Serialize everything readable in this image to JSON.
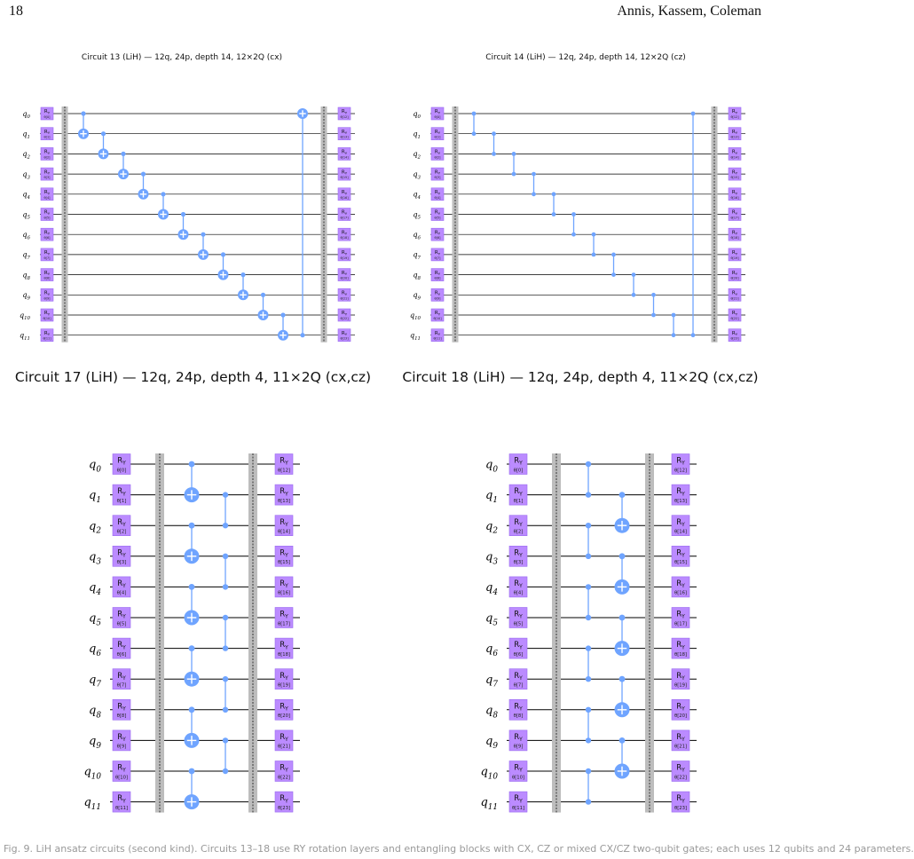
{
  "page": {
    "number": "18",
    "authors": "Annis, Kassem, Coleman"
  },
  "colors": {
    "gate": "#bb8bff",
    "gate_border": "#9a6cf0",
    "entangle": "#6fa4ff",
    "barrier": "#bdbdbd",
    "wire": "#000000"
  },
  "gate_label": "R",
  "gate_sub": "Y",
  "circuits": [
    {
      "title": "Circuit 13 (LiH) — 12q, 24p, depth 14, 12×2Q (cx)",
      "type": "cx",
      "pattern": "chain-ring",
      "two_qubit_gates": [
        [
          0,
          1
        ],
        [
          1,
          2
        ],
        [
          2,
          3
        ],
        [
          3,
          4
        ],
        [
          4,
          5
        ],
        [
          5,
          6
        ],
        [
          6,
          7
        ],
        [
          7,
          8
        ],
        [
          8,
          9
        ],
        [
          9,
          10
        ],
        [
          10,
          11
        ],
        [
          11,
          0
        ]
      ]
    },
    {
      "title": "Circuit 14 (LiH) — 12q, 24p, depth 14, 12×2Q (cz)",
      "type": "cz",
      "pattern": "chain-ring",
      "two_qubit_gates": [
        [
          0,
          1
        ],
        [
          1,
          2
        ],
        [
          2,
          3
        ],
        [
          3,
          4
        ],
        [
          4,
          5
        ],
        [
          5,
          6
        ],
        [
          6,
          7
        ],
        [
          7,
          8
        ],
        [
          8,
          9
        ],
        [
          9,
          10
        ],
        [
          10,
          11
        ],
        [
          11,
          0
        ]
      ]
    },
    {
      "title": "Circuit 17 (LiH) — 12q, 24p, depth 4, 11×2Q (cx,cz)",
      "type": "cx,cz",
      "pattern": "brick",
      "layer1": {
        "type": "cx",
        "pairs": [
          [
            0,
            1
          ],
          [
            2,
            3
          ],
          [
            4,
            5
          ],
          [
            6,
            7
          ],
          [
            8,
            9
          ],
          [
            10,
            11
          ]
        ]
      },
      "layer2": {
        "type": "cz",
        "pairs": [
          [
            1,
            2
          ],
          [
            3,
            4
          ],
          [
            5,
            6
          ],
          [
            7,
            8
          ],
          [
            9,
            10
          ]
        ]
      }
    },
    {
      "title": "Circuit 18 (LiH) — 12q, 24p, depth 4, 11×2Q (cx,cz)",
      "type": "cx,cz",
      "pattern": "brick",
      "layer1": {
        "type": "cz",
        "pairs": [
          [
            0,
            1
          ],
          [
            2,
            3
          ],
          [
            4,
            5
          ],
          [
            6,
            7
          ],
          [
            8,
            9
          ],
          [
            10,
            11
          ]
        ]
      },
      "layer2": {
        "type": "cx",
        "pairs": [
          [
            1,
            2
          ],
          [
            3,
            4
          ],
          [
            5,
            6
          ],
          [
            7,
            8
          ],
          [
            9,
            10
          ]
        ]
      }
    }
  ],
  "caption": "Fig. 9. LiH ansatz circuits (second kind). Circuits 13–18 use RY rotation layers and entangling blocks with CX, CZ or mixed CX/CZ two-qubit gates; each uses 12 qubits and 24 parameters."
}
